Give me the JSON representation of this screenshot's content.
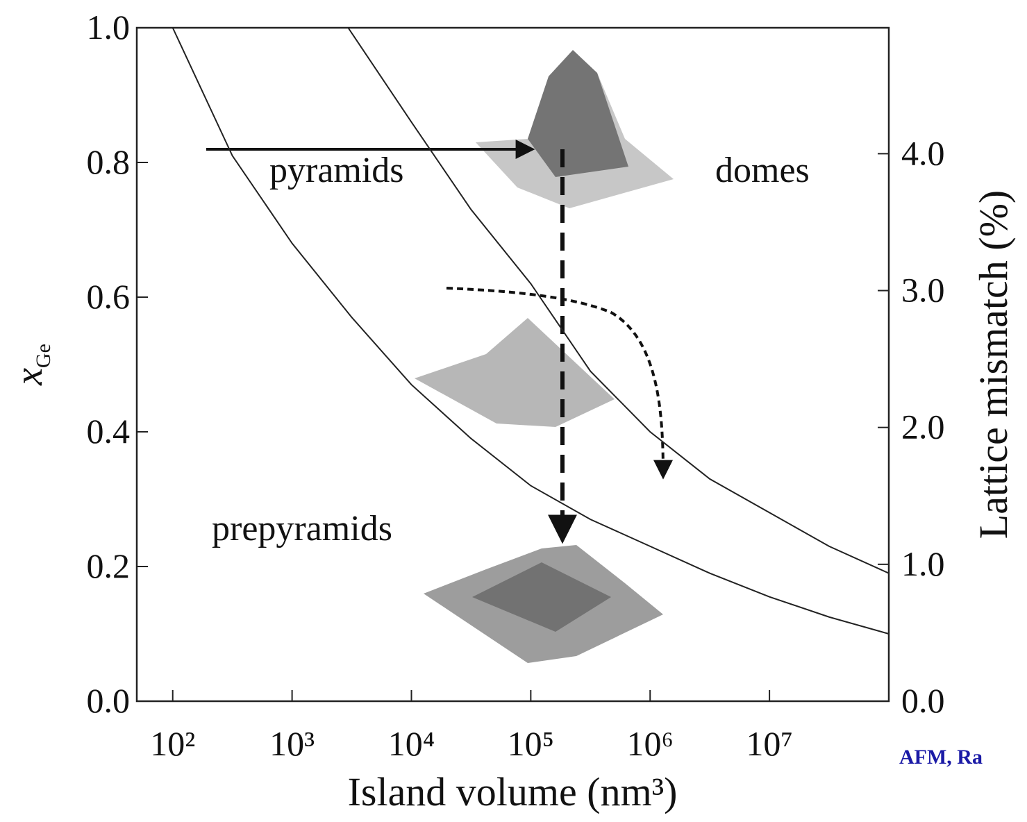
{
  "chart_data": {
    "type": "line",
    "xlabel": "Island volume (nm³)",
    "ylabel": {
      "main": "x",
      "sub": "Ge"
    },
    "y2label": "Lattice mismatch (%)",
    "xscale": "log",
    "xlim": [
      50,
      100000000
    ],
    "xticks": [
      {
        "value": 100,
        "label": "10²"
      },
      {
        "value": 1000,
        "label": "10³"
      },
      {
        "value": 10000,
        "label": "10⁴"
      },
      {
        "value": 100000,
        "label": "10⁵"
      },
      {
        "value": 1000000,
        "label": "10⁶"
      },
      {
        "value": 10000000,
        "label": "10⁷"
      }
    ],
    "ylim": [
      0,
      1
    ],
    "yticks": [
      {
        "value": 0,
        "label": "0.0"
      },
      0.2,
      0.4,
      0.6,
      0.8,
      {
        "value": 1,
        "label": "1.0"
      }
    ],
    "y2lim": [
      0,
      4.92
    ],
    "y2ticks": [
      {
        "value": 0,
        "label": "0.0"
      },
      {
        "value": 1,
        "label": "1.0"
      },
      {
        "value": 2,
        "label": "2.0"
      },
      {
        "value": 3,
        "label": "3.0"
      },
      {
        "value": 4,
        "label": "4.0"
      }
    ],
    "series": [
      {
        "color": "#222222",
        "x": [
          100,
          316,
          1000,
          3162,
          10000,
          31623,
          100000,
          316228,
          1000000,
          3162278,
          10000000,
          31622777,
          100000000
        ],
        "values": [
          1.0,
          0.81,
          0.68,
          0.57,
          0.47,
          0.39,
          0.32,
          0.27,
          0.23,
          0.19,
          0.155,
          0.125,
          0.1
        ]
      },
      {
        "color": "#222222",
        "x": [
          2951,
          10000,
          31623,
          100000,
          316228,
          1000000,
          3162278,
          10000000,
          31622777,
          100000000
        ],
        "values": [
          1.0,
          0.86,
          0.73,
          0.62,
          0.49,
          0.4,
          0.33,
          0.28,
          0.23,
          0.19
        ]
      }
    ],
    "annotations": [
      "pyramids",
      "domes",
      "prepyramids"
    ],
    "note": "AFM, Ra"
  }
}
